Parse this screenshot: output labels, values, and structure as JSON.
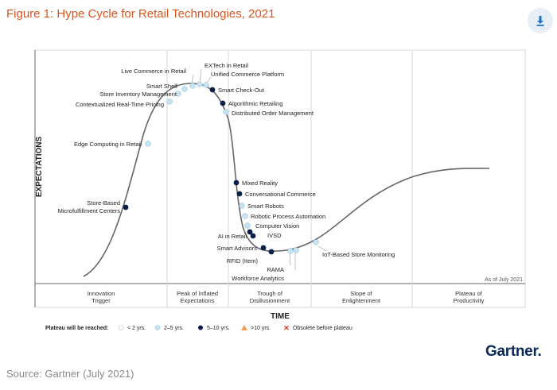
{
  "figure": {
    "title": "Figure 1: Hype Cycle for Retail Technologies, 2021",
    "download_icon": "download-icon",
    "source": "Source: Gartner (July 2021)",
    "brand": "Gartner",
    "brand_dot": "."
  },
  "colors": {
    "title": "#d9541e",
    "curve": "#666666",
    "dark_dot": "#0b1f4b",
    "light_dot": "#c5e4f3",
    "download": "#1f6fd1"
  },
  "chart_data": {
    "type": "scatter",
    "title": "Figure 1: Hype Cycle for Retail Technologies, 2021",
    "xlabel": "TIME",
    "ylabel": "EXPECTATIONS",
    "date_note": "As of July 2021",
    "phases": [
      {
        "line1": "Innovation",
        "line2": "Trigger"
      },
      {
        "line1": "Peak of Inflated",
        "line2": "Expectations"
      },
      {
        "line1": "Trough of",
        "line2": "Disillusionment"
      },
      {
        "line1": "Slope of",
        "line2": "Enlightenment"
      },
      {
        "line1": "Plateau of",
        "line2": "Productivity"
      }
    ],
    "legend": {
      "title": "Plateau will be reached:",
      "items": [
        {
          "label": "< 2 yrs.",
          "shape": "circle",
          "color": "#ffffff"
        },
        {
          "label": "2–5 yrs.",
          "shape": "circle",
          "color": "#c5e4f3"
        },
        {
          "label": "5–10 yrs.",
          "shape": "circle",
          "color": "#0b1f4b"
        },
        {
          "label": ">10 yrs.",
          "shape": "triangle",
          "color": "#f0a050"
        },
        {
          "label": "Obsolete before plateau",
          "shape": "x",
          "color": "#d9341e"
        }
      ]
    },
    "technologies": [
      {
        "name": "Store-Based Microfulfillment Centers",
        "years": "5–10 yrs."
      },
      {
        "name": "Edge Computing in Retail",
        "years": "2–5 yrs."
      },
      {
        "name": "Contextualized Real-Time Pricing",
        "years": "2–5 yrs."
      },
      {
        "name": "Store Inventory Management",
        "years": "2–5 yrs."
      },
      {
        "name": "Smart Shelf",
        "years": "2–5 yrs."
      },
      {
        "name": "Live Commerce in Retail",
        "years": "2–5 yrs."
      },
      {
        "name": "EXTech in Retail",
        "years": "2–5 yrs."
      },
      {
        "name": "Unified Commerce Platform",
        "years": "2–5 yrs."
      },
      {
        "name": "Smart Check-Out",
        "years": "5–10 yrs."
      },
      {
        "name": "Algorithmic Retailing",
        "years": "5–10 yrs."
      },
      {
        "name": "Distributed Order Management",
        "years": "2–5 yrs."
      },
      {
        "name": "Mixed Reality",
        "years": "5–10 yrs."
      },
      {
        "name": "Conversational Commerce",
        "years": "5–10 yrs."
      },
      {
        "name": "Smart Robots",
        "years": "2–5 yrs."
      },
      {
        "name": "Robotic Process Automation",
        "years": "2–5 yrs."
      },
      {
        "name": "Computer Vision",
        "years": "2–5 yrs."
      },
      {
        "name": "IVSD",
        "years": "5–10 yrs."
      },
      {
        "name": "AI in Retail",
        "years": "5–10 yrs."
      },
      {
        "name": "Smart Advisors",
        "years": "5–10 yrs."
      },
      {
        "name": "RFID (Item)",
        "years": "5–10 yrs."
      },
      {
        "name": "RAMA",
        "years": "2–5 yrs."
      },
      {
        "name": "Workforce Analytics",
        "years": "2–5 yrs."
      },
      {
        "name": "IoT-Based Store Monitoring",
        "years": "2–5 yrs."
      }
    ]
  }
}
